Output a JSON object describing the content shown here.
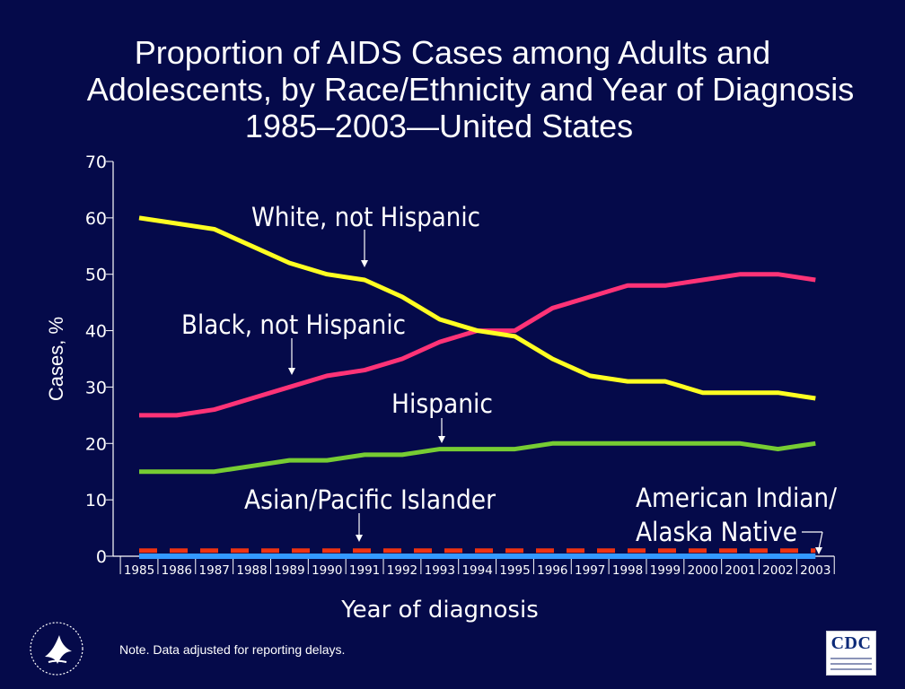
{
  "title": {
    "line1": "Proportion of AIDS Cases among Adults and",
    "line2": "Adolescents, by Race/Ethnicity and Year of Diagnosis",
    "line3": "1985–2003—United States"
  },
  "note": "Note. Data adjusted for reporting delays.",
  "logos": {
    "left": "hhs-eagle-icon",
    "right": "CDC"
  },
  "colors": {
    "background": "#050a4a",
    "white_not_hispanic": "#ffff22",
    "black_not_hispanic": "#ff3377",
    "hispanic": "#77cc33",
    "asian_pacific_islander": "#ee3311",
    "american_indian_alaska_native": "#3399ff",
    "axis": "#ffffff"
  },
  "chart_data": {
    "type": "line",
    "xlabel": "Year of diagnosis",
    "ylabel": "Cases, %",
    "ylim": [
      0,
      70
    ],
    "yticks": [
      0,
      10,
      20,
      30,
      40,
      50,
      60,
      70
    ],
    "grid": false,
    "categories": [
      "1985",
      "1986",
      "1987",
      "1988",
      "1989",
      "1990",
      "1991",
      "1992",
      "1993",
      "1994",
      "1995",
      "1996",
      "1997",
      "1998",
      "1999",
      "2000",
      "2001",
      "2002",
      "2003"
    ],
    "series": [
      {
        "name": "White, not Hispanic",
        "style": "solid",
        "values": [
          60,
          59,
          58,
          55,
          52,
          50,
          49,
          46,
          42,
          40,
          39,
          35,
          32,
          31,
          31,
          29,
          29,
          29,
          28
        ]
      },
      {
        "name": "Black, not Hispanic",
        "style": "solid",
        "values": [
          25,
          25,
          26,
          28,
          30,
          32,
          33,
          35,
          38,
          40,
          40,
          44,
          46,
          48,
          48,
          49,
          50,
          50,
          49
        ]
      },
      {
        "name": "Hispanic",
        "style": "solid",
        "values": [
          15,
          15,
          15,
          16,
          17,
          17,
          18,
          18,
          19,
          19,
          19,
          20,
          20,
          20,
          20,
          20,
          20,
          19,
          20
        ]
      },
      {
        "name": "Asian/Pacific Islander",
        "style": "dashed",
        "values": [
          1,
          1,
          1,
          1,
          1,
          1,
          1,
          1,
          1,
          1,
          1,
          1,
          1,
          1,
          1,
          1,
          1,
          1,
          1
        ]
      },
      {
        "name": "American Indian/ Alaska Native",
        "style": "solid",
        "values": [
          0,
          0,
          0,
          0,
          0,
          0,
          0,
          0,
          0,
          0,
          0,
          0,
          0,
          0,
          0,
          0,
          0,
          0,
          0
        ]
      }
    ],
    "annotations": [
      {
        "text": "White, not Hispanic",
        "series": 0
      },
      {
        "text": "Black, not Hispanic",
        "series": 1
      },
      {
        "text": "Hispanic",
        "series": 2
      },
      {
        "text": "Asian/Pacific Islander",
        "series": 3
      },
      {
        "lines": [
          "American Indian/",
          "Alaska Native"
        ],
        "series": 4
      }
    ]
  }
}
